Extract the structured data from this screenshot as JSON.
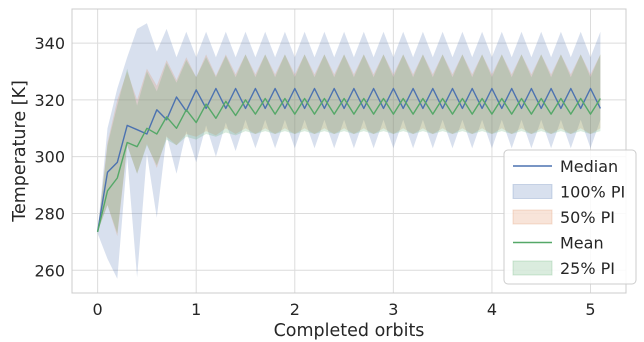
{
  "chart_data": {
    "type": "line",
    "title": "",
    "xlabel": "Completed orbits",
    "ylabel": "Temperature [K]",
    "xlim": [
      -0.26,
      5.36
    ],
    "ylim": [
      252,
      352
    ],
    "x_ticks": [
      0,
      1,
      2,
      3,
      4,
      5
    ],
    "y_ticks": [
      260,
      280,
      300,
      320,
      340
    ],
    "grid": true,
    "legend_position": "bottom-right",
    "colors": {
      "median": "#4c72b0",
      "pi100": "#4c72b0",
      "pi50": "#dd8452",
      "mean": "#55a868",
      "pi25": "#55a868"
    },
    "legend": [
      "Median",
      "100% PI",
      "50% PI",
      "Mean",
      "25% PI"
    ],
    "x": [
      0.0,
      0.1,
      0.2,
      0.3,
      0.4,
      0.5,
      0.6,
      0.7,
      0.8,
      0.9,
      1.0,
      1.1,
      1.2,
      1.3,
      1.4,
      1.5,
      1.6,
      1.7,
      1.8,
      1.9,
      2.0,
      2.1,
      2.2,
      2.3,
      2.4,
      2.5,
      2.6,
      2.7,
      2.8,
      2.9,
      3.0,
      3.1,
      3.2,
      3.3,
      3.4,
      3.5,
      3.6,
      3.7,
      3.8,
      3.9,
      4.0,
      4.1,
      4.2,
      4.3,
      4.4,
      4.5,
      4.6,
      4.7,
      4.8,
      4.9,
      5.0,
      5.1
    ],
    "series": [
      {
        "name": "Median",
        "values": [
          273.5,
          294.5,
          298.0,
          311.0,
          309.5,
          308.0,
          316.5,
          313.0,
          321.0,
          316.0,
          323.5,
          317.0,
          324.0,
          317.0,
          324.0,
          317.0,
          324.0,
          317.0,
          324.0,
          317.0,
          324.0,
          317.0,
          324.0,
          317.0,
          324.0,
          317.0,
          324.0,
          317.0,
          324.0,
          317.0,
          324.0,
          317.0,
          324.0,
          317.0,
          324.0,
          317.0,
          324.0,
          317.0,
          324.0,
          317.0,
          324.0,
          317.0,
          324.0,
          317.0,
          324.0,
          317.0,
          324.0,
          317.0,
          324.0,
          317.0,
          324.0,
          317.0
        ]
      },
      {
        "name": "Mean",
        "values": [
          273.5,
          288.0,
          292.5,
          305.0,
          303.5,
          310.0,
          308.0,
          314.0,
          310.0,
          316.5,
          312.0,
          318.5,
          313.5,
          319.5,
          314.5,
          320.0,
          315.0,
          320.5,
          315.0,
          320.5,
          315.0,
          320.5,
          315.0,
          320.5,
          315.0,
          320.5,
          315.0,
          320.5,
          315.0,
          320.5,
          315.0,
          320.5,
          315.0,
          320.5,
          315.0,
          320.5,
          315.0,
          320.5,
          315.0,
          320.5,
          315.0,
          320.5,
          315.0,
          320.5,
          315.0,
          320.5,
          315.0,
          320.5,
          315.0,
          320.5,
          315.0,
          320.5
        ]
      }
    ],
    "bands": [
      {
        "name": "100% PI",
        "lower": [
          273.0,
          264.0,
          257.0,
          300.0,
          257.5,
          301.0,
          278.5,
          307.5,
          294.0,
          309.0,
          298.0,
          311.0,
          300.0,
          312.0,
          302.0,
          313.0,
          303.0,
          313.0,
          303.0,
          313.0,
          303.0,
          313.0,
          303.0,
          313.0,
          303.0,
          313.0,
          303.0,
          313.0,
          303.0,
          313.0,
          303.0,
          313.0,
          303.0,
          313.0,
          303.0,
          313.0,
          303.0,
          313.0,
          303.0,
          313.0,
          303.0,
          313.0,
          303.0,
          313.0,
          303.0,
          313.0,
          303.0,
          313.0,
          303.0,
          313.0,
          303.0,
          313.0
        ],
        "upper": [
          273.5,
          310.0,
          324.0,
          335.0,
          345.0,
          347.0,
          337.0,
          345.0,
          335.0,
          344.0,
          335.0,
          344.0,
          335.0,
          344.0,
          335.0,
          344.0,
          335.0,
          344.0,
          335.0,
          344.0,
          335.0,
          344.0,
          335.0,
          344.0,
          335.0,
          344.0,
          335.0,
          344.0,
          335.0,
          344.0,
          335.0,
          344.0,
          335.0,
          344.0,
          335.0,
          344.0,
          335.0,
          344.0,
          335.0,
          344.0,
          335.0,
          344.0,
          335.0,
          344.0,
          335.0,
          344.0,
          335.0,
          344.0,
          335.0,
          344.0,
          335.0,
          344.0
        ]
      },
      {
        "name": "50% PI",
        "lower": [
          273.5,
          283.0,
          272.0,
          304.0,
          294.0,
          304.5,
          296.0,
          307.0,
          304.0,
          308.0,
          307.0,
          309.0,
          307.5,
          310.0,
          308.0,
          310.0,
          308.0,
          310.0,
          308.0,
          310.0,
          308.0,
          310.0,
          308.0,
          310.0,
          308.0,
          310.0,
          308.0,
          310.0,
          308.0,
          310.0,
          308.0,
          310.0,
          308.0,
          310.0,
          308.0,
          310.0,
          308.0,
          310.0,
          308.0,
          310.0,
          308.0,
          310.0,
          308.0,
          310.0,
          308.0,
          310.0,
          308.0,
          310.0,
          308.0,
          310.0,
          308.0,
          310.0
        ],
        "upper": [
          273.5,
          305.0,
          320.0,
          330.0,
          320.0,
          331.0,
          325.0,
          334.0,
          327.0,
          335.0,
          328.0,
          336.0,
          328.5,
          336.0,
          329.0,
          336.0,
          329.0,
          336.0,
          329.0,
          336.0,
          329.0,
          336.0,
          329.0,
          336.0,
          329.0,
          336.0,
          329.0,
          336.0,
          329.0,
          336.0,
          329.0,
          336.0,
          329.0,
          336.0,
          329.0,
          336.0,
          329.0,
          336.0,
          329.0,
          336.0,
          329.0,
          336.0,
          329.0,
          336.0,
          329.0,
          336.0,
          329.0,
          336.0,
          329.0,
          336.0,
          329.0,
          336.0
        ]
      },
      {
        "name": "25% PI",
        "lower": [
          273.5,
          283.0,
          273.0,
          304.0,
          294.0,
          304.0,
          297.0,
          306.0,
          304.0,
          307.0,
          306.0,
          308.0,
          307.0,
          308.5,
          307.5,
          309.0,
          308.0,
          309.0,
          308.0,
          309.0,
          308.0,
          309.0,
          308.0,
          309.0,
          308.0,
          309.0,
          308.0,
          309.0,
          308.0,
          309.0,
          308.0,
          309.0,
          308.0,
          309.0,
          308.0,
          309.0,
          308.0,
          309.0,
          308.0,
          309.0,
          308.0,
          309.0,
          308.0,
          309.0,
          308.0,
          309.0,
          308.0,
          309.0,
          308.0,
          309.0,
          308.0,
          309.0
        ],
        "upper": [
          273.5,
          304.0,
          318.0,
          331.0,
          318.0,
          330.0,
          323.0,
          333.0,
          326.0,
          334.0,
          328.0,
          335.0,
          328.0,
          335.5,
          328.0,
          336.0,
          328.0,
          336.0,
          328.0,
          336.0,
          328.0,
          336.0,
          328.0,
          336.0,
          328.0,
          336.0,
          328.0,
          336.0,
          328.0,
          336.0,
          328.0,
          336.0,
          328.0,
          336.0,
          328.0,
          336.0,
          328.0,
          336.0,
          328.0,
          336.0,
          328.0,
          336.0,
          328.0,
          336.0,
          328.0,
          336.0,
          328.0,
          336.0,
          328.0,
          336.0,
          328.0,
          336.0
        ]
      }
    ]
  }
}
